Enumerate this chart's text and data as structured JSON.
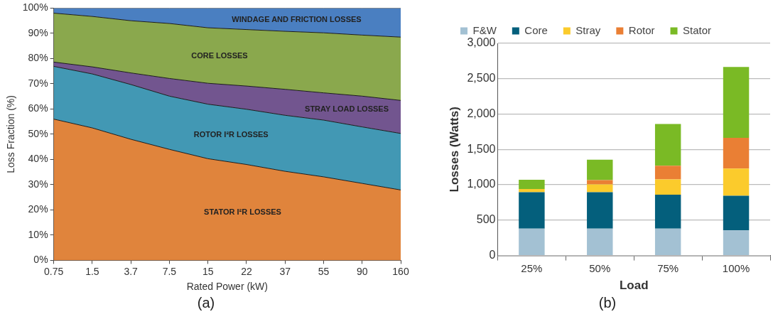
{
  "chart_data": [
    {
      "type": "area",
      "stacked": true,
      "xlabel": "Rated Power (kW)",
      "ylabel": "Loss Fraction (%)",
      "categories": [
        "0.75",
        "1.5",
        "3.7",
        "7.5",
        "15",
        "22",
        "37",
        "55",
        "90",
        "160"
      ],
      "series": [
        {
          "name": "STATOR I²R LOSSES",
          "color": "#e0843c",
          "values": [
            56.0,
            52.5,
            48.0,
            44.0,
            40.3,
            38.0,
            35.3,
            33.1,
            30.5,
            27.9
          ]
        },
        {
          "name": "ROTOR I²R LOSSES",
          "color": "#4298b4",
          "values": [
            20.9,
            21.4,
            21.7,
            21.1,
            21.6,
            21.9,
            22.2,
            22.5,
            22.4,
            22.4
          ]
        },
        {
          "name": "STRAY LOAD LOSSES",
          "color": "#72558f",
          "values": [
            1.7,
            2.8,
            4.6,
            7.0,
            8.3,
            9.2,
            10.3,
            10.8,
            12.2,
            13.1
          ]
        },
        {
          "name": "CORE LOSSES",
          "color": "#8aa84d",
          "values": [
            19.4,
            20.0,
            20.7,
            21.8,
            22.0,
            22.4,
            23.0,
            23.8,
            24.2,
            25.1
          ]
        },
        {
          "name": "WINDAGE AND FRICTION LOSSES",
          "color": "#4a7fc1",
          "values": [
            2.0,
            3.3,
            5.0,
            6.1,
            7.8,
            8.5,
            9.2,
            9.8,
            10.7,
            11.5
          ]
        }
      ],
      "ylim": [
        0,
        100
      ],
      "yticks": [
        {
          "value": 0,
          "label": "0%"
        },
        {
          "value": 10,
          "label": "10%"
        },
        {
          "value": 20,
          "label": "20%"
        },
        {
          "value": 30,
          "label": "30%"
        },
        {
          "value": 40,
          "label": "40%"
        },
        {
          "value": 50,
          "label": "50%"
        },
        {
          "value": 60,
          "label": "60%"
        },
        {
          "value": 70,
          "label": "70%"
        },
        {
          "value": 80,
          "label": "80%"
        },
        {
          "value": 90,
          "label": "90%"
        },
        {
          "value": 100,
          "label": "100%"
        }
      ],
      "legend": false,
      "annotations": [
        "(a)"
      ]
    },
    {
      "type": "bar",
      "stacked": true,
      "xlabel": "Load",
      "ylabel": "Losses (Watts)",
      "categories": [
        "25%",
        "50%",
        "75%",
        "100%"
      ],
      "series": [
        {
          "name": "F&W",
          "color": "#a3c1d3",
          "values": [
            380,
            380,
            380,
            355
          ]
        },
        {
          "name": "Core",
          "color": "#045f7c",
          "values": [
            515,
            515,
            480,
            490
          ]
        },
        {
          "name": "Stray",
          "color": "#fbcb2c",
          "values": [
            45,
            110,
            215,
            385
          ]
        },
        {
          "name": "Rotor",
          "color": "#ea7f34",
          "values": [
            0,
            60,
            195,
            435
          ]
        },
        {
          "name": "Stator",
          "color": "#7aba25",
          "values": [
            130,
            290,
            590,
            1000
          ]
        }
      ],
      "ylim": [
        0,
        3000
      ],
      "yticks": [
        0,
        500,
        {
          "value": 1000,
          "label": "1,000"
        },
        {
          "value": 1500,
          "label": "1,500"
        },
        {
          "value": 2000,
          "label": "2,000"
        },
        {
          "value": 2500,
          "label": "2,500"
        },
        {
          "value": 3000,
          "label": "3,000"
        }
      ],
      "grid": "y",
      "legend": "top",
      "annotations": [
        "(b)"
      ]
    }
  ]
}
